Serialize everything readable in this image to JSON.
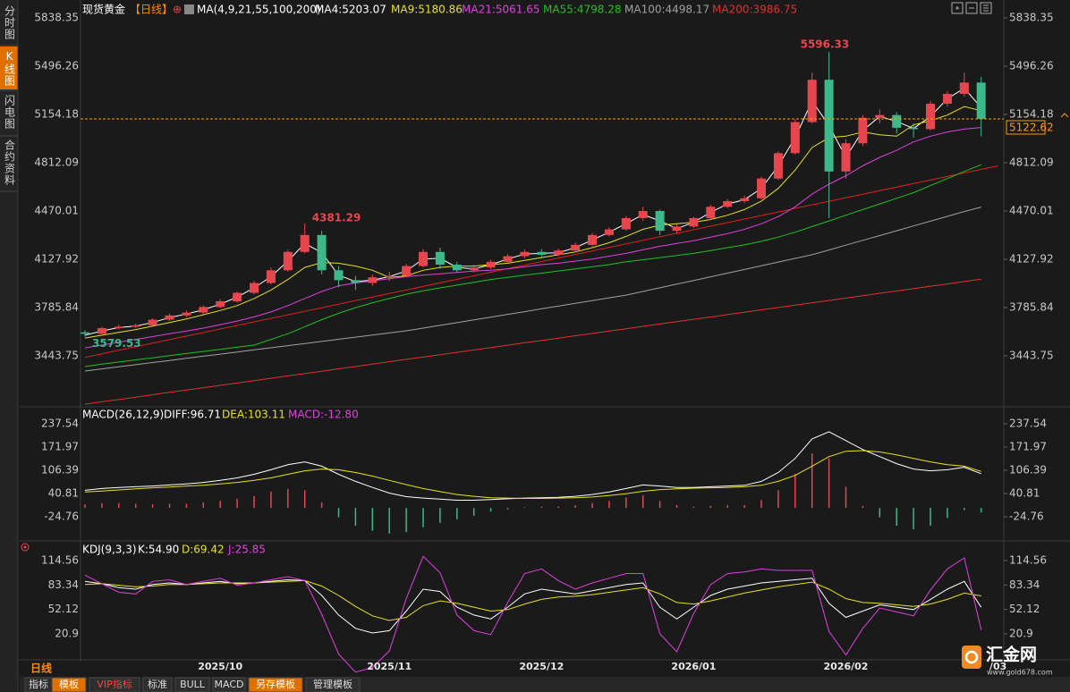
{
  "sidebar": [
    "分时图",
    "K线图",
    "闪电图",
    "合约资料"
  ],
  "toolbar": [
    "指标",
    "模板",
    "VIP指标",
    "标准",
    "BULL",
    "MACD",
    "另存模板",
    "管理模板"
  ],
  "period_label": "日线",
  "logo": {
    "name": "汇金网",
    "url": "www.gold678.com"
  },
  "chart_data": [
    {
      "type": "candlestick",
      "title": "现货黄金",
      "period": "【日线】",
      "indicator": "MA(4,9,21,55,100,200)",
      "categories": [
        null,
        null,
        null,
        null,
        null,
        null,
        null,
        null,
        "2025/10",
        null,
        null,
        null,
        null,
        null,
        null,
        null,
        null,
        null,
        "2025/11",
        null,
        null,
        null,
        null,
        null,
        null,
        null,
        null,
        "2025/12",
        null,
        null,
        null,
        null,
        null,
        null,
        null,
        null,
        "2026/01",
        null,
        null,
        null,
        null,
        null,
        null,
        null,
        null,
        "2026/02",
        null,
        null,
        null,
        null,
        null,
        null,
        null,
        null,
        "/03"
      ],
      "ohlc": {
        "up_color": "#e8464e",
        "down_color": "#3cb88a",
        "open": [
          3610,
          3600,
          3640,
          3650,
          3660,
          3700,
          3730,
          3750,
          3790,
          3830,
          3890,
          3960,
          4050,
          4180,
          4300,
          4050,
          3980,
          3960,
          4000,
          4010,
          4080,
          4180,
          4090,
          4050,
          4070,
          4110,
          4150,
          4180,
          4160,
          4190,
          4230,
          4300,
          4340,
          4420,
          4470,
          4330,
          4360,
          4420,
          4500,
          4540,
          4560,
          4700,
          4880,
          5100,
          5400,
          4750,
          4950,
          5130,
          5150,
          5060,
          5050,
          5230,
          5300,
          5380,
          null
        ],
        "high": [
          3625,
          3650,
          3665,
          3672,
          3710,
          3742,
          3765,
          3800,
          3845,
          3900,
          3975,
          4070,
          4195,
          4381.29,
          4330,
          4080,
          4010,
          4020,
          4040,
          4095,
          4200,
          4210,
          4110,
          4090,
          4125,
          4165,
          4195,
          4200,
          4205,
          4245,
          4315,
          4355,
          4435,
          4500,
          4480,
          4375,
          4430,
          4515,
          4555,
          4580,
          4715,
          4895,
          5120,
          5450,
          5596.33,
          4980,
          5150,
          5190,
          5170,
          5090,
          5250,
          5320,
          5450,
          5420,
          null
        ],
        "low": [
          3579.53,
          3595,
          3630,
          3640,
          3655,
          3690,
          3715,
          3740,
          3780,
          3820,
          3880,
          3950,
          4040,
          4170,
          4020,
          3930,
          3910,
          3940,
          3975,
          4000,
          4070,
          4060,
          4030,
          4035,
          4060,
          4100,
          4135,
          4140,
          4150,
          4180,
          4220,
          4290,
          4330,
          4400,
          4300,
          4310,
          4350,
          4410,
          4490,
          4525,
          4550,
          4690,
          4870,
          5090,
          4420,
          4700,
          4930,
          5090,
          5020,
          4990,
          5040,
          5210,
          5280,
          5000,
          null
        ],
        "close": [
          3600,
          3640,
          3650,
          3660,
          3700,
          3730,
          3750,
          3790,
          3830,
          3890,
          3960,
          4050,
          4180,
          4300,
          4050,
          3980,
          3960,
          4000,
          4010,
          4080,
          4180,
          4090,
          4050,
          4070,
          4110,
          4150,
          4180,
          4160,
          4190,
          4230,
          4300,
          4340,
          4420,
          4470,
          4330,
          4360,
          4420,
          4500,
          4540,
          4560,
          4700,
          4880,
          5100,
          5400,
          4750,
          4950,
          5130,
          5150,
          5060,
          5050,
          5230,
          5300,
          5380,
          5122.62,
          null
        ]
      },
      "series": [
        {
          "label": "MA4:5203.07",
          "color": "#ffffff",
          "values": [
            3590,
            3620,
            3645,
            3655,
            3680,
            3715,
            3740,
            3770,
            3810,
            3860,
            3925,
            4005,
            4115,
            4240,
            4175,
            4015,
            3970,
            3980,
            4005,
            4045,
            4130,
            4135,
            4070,
            4060,
            4090,
            4130,
            4165,
            4170,
            4175,
            4210,
            4265,
            4320,
            4380,
            4445,
            4400,
            4345,
            4390,
            4460,
            4520,
            4550,
            4630,
            4790,
            4990,
            5250,
            5075,
            4850,
            5040,
            5140,
            5105,
            5055,
            5140,
            5265,
            5340,
            5203.07,
            null
          ]
        },
        {
          "label": "MA9:5180.86",
          "color": "#e8e020",
          "values": [
            3570,
            3590,
            3610,
            3630,
            3655,
            3680,
            3705,
            3735,
            3765,
            3800,
            3850,
            3910,
            3985,
            4070,
            4105,
            4100,
            4080,
            4050,
            4000,
            4010,
            4050,
            4070,
            4080,
            4080,
            4090,
            4100,
            4120,
            4140,
            4160,
            4180,
            4210,
            4245,
            4290,
            4340,
            4370,
            4380,
            4390,
            4410,
            4440,
            4480,
            4540,
            4630,
            4760,
            4920,
            4990,
            5000,
            5030,
            5010,
            5000,
            5080,
            5110,
            5150,
            5210,
            5180.86,
            null
          ]
        },
        {
          "label": "MA21:5061.65",
          "color": "#e040e0",
          "values": [
            3500,
            3520,
            3540,
            3560,
            3580,
            3600,
            3620,
            3640,
            3665,
            3690,
            3720,
            3755,
            3800,
            3850,
            3900,
            3940,
            3960,
            3975,
            3990,
            4005,
            4015,
            4025,
            4035,
            4045,
            4050,
            4060,
            4075,
            4090,
            4100,
            4115,
            4130,
            4150,
            4170,
            4195,
            4220,
            4240,
            4260,
            4285,
            4310,
            4340,
            4380,
            4430,
            4500,
            4590,
            4660,
            4720,
            4790,
            4850,
            4900,
            4960,
            5000,
            5030,
            5050,
            5061.65,
            null
          ]
        },
        {
          "label": "MA55:4798.28",
          "color": "#22c022",
          "values": [
            3368,
            3385,
            3400,
            3415,
            3430,
            3445,
            3460,
            3475,
            3490,
            3505,
            3520,
            3560,
            3600,
            3650,
            3700,
            3745,
            3785,
            3820,
            3850,
            3880,
            3905,
            3925,
            3945,
            3965,
            3985,
            4000,
            4015,
            4030,
            4045,
            4060,
            4075,
            4090,
            4110,
            4125,
            4140,
            4155,
            4170,
            4190,
            4210,
            4230,
            4255,
            4285,
            4320,
            4360,
            4400,
            4440,
            4480,
            4520,
            4560,
            4600,
            4650,
            4700,
            4750,
            4798.28,
            null
          ]
        },
        {
          "label": "MA100:4498.17",
          "color": "#a0a0a0",
          "values": [
            3336,
            3351,
            3366,
            3381,
            3396,
            3411,
            3426,
            3441,
            3456,
            3471,
            3486,
            3501,
            3516,
            3531,
            3546,
            3561,
            3576,
            3591,
            3606,
            3621,
            3640,
            3660,
            3679,
            3699,
            3718,
            3738,
            3757,
            3777,
            3796,
            3816,
            3835,
            3855,
            3874,
            3900,
            3926,
            3952,
            3978,
            4004,
            4030,
            4056,
            4082,
            4108,
            4134,
            4160,
            4194,
            4228,
            4262,
            4296,
            4330,
            4364,
            4398,
            4432,
            4466,
            4498.17,
            null
          ]
        },
        {
          "label": "MA200:3986.75",
          "color": "#e03030",
          "values": [
            3101,
            3118,
            3134,
            3151,
            3168,
            3185,
            3201,
            3218,
            3235,
            3251,
            3268,
            3285,
            3302,
            3318,
            3335,
            3352,
            3368,
            3385,
            3402,
            3419,
            3435,
            3452,
            3469,
            3485,
            3502,
            3519,
            3536,
            3552,
            3569,
            3586,
            3602,
            3619,
            3636,
            3653,
            3669,
            3686,
            3703,
            3719,
            3736,
            3753,
            3770,
            3786,
            3803,
            3820,
            3836,
            3853,
            3870,
            3887,
            3903,
            3920,
            3937,
            3953,
            3970,
            3986.75,
            null
          ]
        }
      ],
      "trendline": {
        "color": "#e02020",
        "x": [
          0,
          54
        ],
        "y": [
          3433,
          4790
        ]
      },
      "last_price_color": "#ff9a00",
      "ylim": [
        3082.66,
        5914.37
      ],
      "yticks": [
        5838.35,
        5496.26,
        5154.18,
        4812.09,
        4470.01,
        4127.92,
        3785.84,
        3443.75
      ]
    },
    {
      "type": "macd",
      "indicator": "MACD(26,12,9)",
      "series": [
        {
          "label": "DIFF:96.71",
          "color": "#ffffff",
          "values": [
            50,
            55,
            58,
            60,
            62,
            65,
            68,
            72,
            78,
            85,
            95,
            108,
            122,
            130,
            118,
            95,
            75,
            58,
            42,
            32,
            28,
            25,
            22,
            22,
            24,
            26,
            28,
            29,
            30,
            33,
            38,
            45,
            55,
            65,
            62,
            58,
            58,
            60,
            62,
            64,
            75,
            100,
            140,
            195,
            215,
            190,
            165,
            145,
            125,
            110,
            105,
            108,
            115,
            96.71,
            null
          ]
        },
        {
          "label": "DEA:103.11",
          "color": "#e8e020",
          "values": [
            45,
            48,
            51,
            54,
            57,
            59,
            62,
            64,
            68,
            72,
            78,
            85,
            95,
            105,
            110,
            108,
            100,
            90,
            78,
            66,
            55,
            46,
            38,
            33,
            29,
            28,
            27,
            27,
            28,
            29,
            31,
            35,
            40,
            47,
            52,
            54,
            56,
            57,
            58,
            60,
            64,
            75,
            92,
            118,
            145,
            160,
            162,
            158,
            150,
            140,
            130,
            122,
            118,
            103.11,
            null
          ]
        }
      ],
      "histogram": {
        "label": "MACD:-12.80",
        "color": "#e040e0",
        "up_color": "#e8464e",
        "down_color": "#3cb88a",
        "values": [
          10,
          14,
          14,
          12,
          10,
          12,
          12,
          16,
          20,
          26,
          34,
          46,
          54,
          50,
          16,
          -26,
          -50,
          -64,
          -72,
          -68,
          -54,
          -42,
          -32,
          -22,
          -10,
          -4,
          2,
          4,
          4,
          8,
          14,
          20,
          30,
          36,
          20,
          8,
          4,
          6,
          8,
          8,
          22,
          50,
          96,
          154,
          140,
          60,
          6,
          -26,
          -50,
          -60,
          -50,
          -28,
          -6,
          -12.8,
          null
        ]
      },
      "ylim": [
        -92.85,
        252.67
      ],
      "yticks": [
        237.54,
        171.97,
        106.39,
        40.81,
        -24.76
      ]
    },
    {
      "type": "kdj",
      "indicator": "KDJ(9,3,3)",
      "series": [
        {
          "label": "K:54.90",
          "color": "#ffffff",
          "values": [
            88,
            85,
            80,
            78,
            84,
            86,
            84,
            86,
            88,
            85,
            86,
            88,
            90,
            89,
            70,
            45,
            28,
            22,
            25,
            50,
            78,
            75,
            55,
            45,
            40,
            55,
            72,
            78,
            75,
            72,
            76,
            80,
            84,
            86,
            55,
            40,
            55,
            70,
            78,
            82,
            86,
            88,
            90,
            92,
            60,
            42,
            50,
            58,
            55,
            52,
            65,
            78,
            88,
            54.9,
            null
          ]
        },
        {
          "label": "D:69.42",
          "color": "#e8e020",
          "values": [
            84,
            85,
            83,
            81,
            82,
            84,
            84,
            85,
            86,
            86,
            86,
            87,
            88,
            89,
            82,
            70,
            56,
            44,
            38,
            42,
            57,
            63,
            60,
            55,
            50,
            52,
            59,
            65,
            68,
            69,
            71,
            74,
            77,
            80,
            72,
            61,
            59,
            63,
            68,
            73,
            77,
            81,
            84,
            87,
            78,
            66,
            61,
            60,
            58,
            56,
            59,
            65,
            73,
            69.42,
            null
          ]
        },
        {
          "label": "J:25.85",
          "color": "#e040e0",
          "values": [
            96,
            85,
            74,
            72,
            88,
            90,
            84,
            88,
            92,
            83,
            86,
            90,
            94,
            89,
            46,
            -5,
            -28,
            -22,
            -1,
            66,
            120,
            99,
            45,
            25,
            20,
            61,
            98,
            104,
            89,
            78,
            86,
            92,
            98,
            98,
            21,
            -2,
            47,
            84,
            98,
            100,
            104,
            102,
            102,
            102,
            24,
            -6,
            28,
            54,
            49,
            44,
            77,
            104,
            118,
            25.85,
            null
          ]
        }
      ],
      "ylim": [
        -8.83,
        134.0
      ],
      "yticks": [
        114.56,
        83.34,
        52.12,
        20.9
      ]
    }
  ]
}
